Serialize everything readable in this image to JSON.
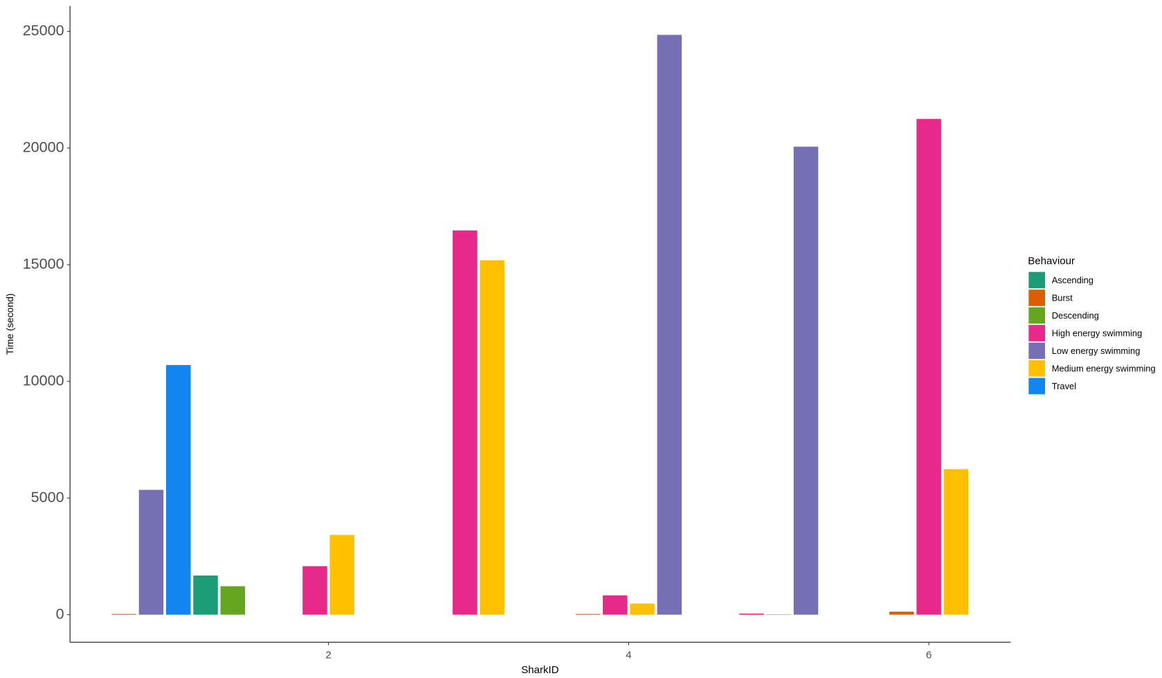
{
  "chart_data": {
    "type": "bar",
    "x_label": "SharkID",
    "y_label": "Time (second)",
    "x": [
      1,
      2,
      3,
      4,
      5,
      6
    ],
    "xlim": [
      0.278,
      6.546
    ],
    "xticks": [
      2,
      4,
      6
    ],
    "ylim": [
      -1180,
      26090
    ],
    "yticks": [
      0,
      5000,
      10000,
      15000,
      20000,
      25000
    ],
    "grid": false,
    "legend_title": "Behaviour",
    "legend_position": "right",
    "series": [
      {
        "name": "Ascending",
        "color": "#1b9e77",
        "values": [
          1680,
          null,
          null,
          null,
          null,
          null
        ]
      },
      {
        "name": "Burst",
        "color": "#d95f02",
        "values": [
          30,
          null,
          null,
          30,
          null,
          130
        ]
      },
      {
        "name": "Descending",
        "color": "#66a61e",
        "values": [
          1220,
          null,
          null,
          null,
          null,
          null
        ]
      },
      {
        "name": "High energy swimming",
        "color": "#e7298a",
        "values": [
          null,
          2080,
          16470,
          830,
          50,
          21250
        ]
      },
      {
        "name": "Low energy swimming",
        "color": "#7570b3",
        "values": [
          5350,
          null,
          null,
          24850,
          20060,
          null
        ]
      },
      {
        "name": "Medium energy swimming",
        "color": "#ffc000",
        "values": [
          null,
          3420,
          15190,
          480,
          20,
          6240
        ]
      },
      {
        "name": "Travel",
        "color": "#1185f0",
        "values": [
          10700,
          null,
          null,
          null,
          null,
          null
        ]
      }
    ]
  }
}
